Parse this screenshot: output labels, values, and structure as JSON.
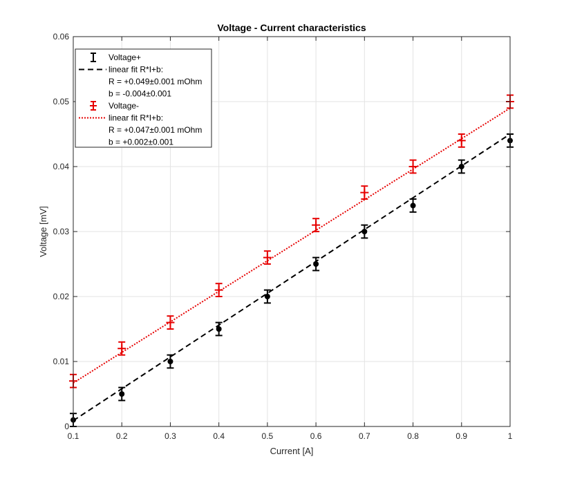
{
  "chart_data": {
    "type": "scatter",
    "title": "Voltage - Current characteristics",
    "xlabel": "Current [A]",
    "ylabel": "Voltage [mV]",
    "xlim": [
      0.1,
      1
    ],
    "ylim": [
      0,
      0.06
    ],
    "xticks": [
      "0.1",
      "0.2",
      "0.3",
      "0.4",
      "0.5",
      "0.6",
      "0.7",
      "0.8",
      "0.9",
      "1"
    ],
    "yticks": [
      "0",
      "0.01",
      "0.02",
      "0.03",
      "0.04",
      "0.05",
      "0.06"
    ],
    "grid": true,
    "legend_position": "top-left",
    "x": [
      0.1,
      0.2,
      0.3,
      0.4,
      0.5,
      0.6,
      0.7,
      0.8,
      0.9,
      1.0
    ],
    "series": [
      {
        "name": "Voltage+",
        "color": "#000000",
        "marker": "circle",
        "values": [
          0.001,
          0.005,
          0.01,
          0.015,
          0.02,
          0.025,
          0.03,
          0.034,
          0.04,
          0.044
        ],
        "error": 0.001
      },
      {
        "name": "Voltage-",
        "color": "#e60000",
        "marker": "plus",
        "values": [
          0.007,
          0.012,
          0.016,
          0.021,
          0.026,
          0.031,
          0.036,
          0.04,
          0.044,
          0.05
        ],
        "error": 0.001
      }
    ],
    "fits": [
      {
        "label_lines": [
          "linear fit R*I+b:",
          "R = +0.049±0.001 mOhm",
          "b = -0.004±0.001"
        ],
        "slope": 0.049,
        "intercept": -0.004,
        "color": "#000000",
        "style": "dashed"
      },
      {
        "label_lines": [
          "linear fit R*I+b:",
          "R = +0.047±0.001 mOhm",
          "b = +0.002±0.001"
        ],
        "slope": 0.047,
        "intercept": 0.002,
        "color": "#e60000",
        "style": "dotted"
      }
    ]
  }
}
